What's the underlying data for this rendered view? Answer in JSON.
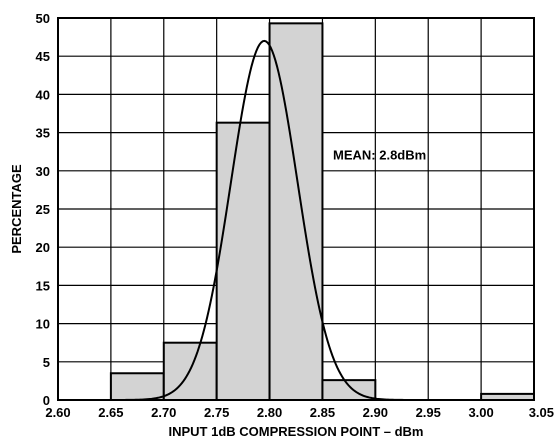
{
  "chart_data": {
    "type": "bar",
    "title": "",
    "xlabel": "INPUT 1dB COMPRESSION POINT – dBm",
    "ylabel": "PERCENTAGE",
    "xlim": [
      2.6,
      3.05
    ],
    "ylim": [
      0,
      50
    ],
    "x_ticks": [
      "2.60",
      "2.65",
      "2.70",
      "2.75",
      "2.80",
      "2.85",
      "2.90",
      "2.95",
      "3.00",
      "3.05"
    ],
    "y_ticks": [
      "0",
      "5",
      "10",
      "15",
      "20",
      "25",
      "30",
      "35",
      "40",
      "45",
      "50"
    ],
    "grid": true,
    "bins": [
      {
        "x0": 2.65,
        "x1": 2.7,
        "value": 3.5
      },
      {
        "x0": 2.7,
        "x1": 2.75,
        "value": 7.5
      },
      {
        "x0": 2.75,
        "x1": 2.8,
        "value": 36.3
      },
      {
        "x0": 2.8,
        "x1": 2.85,
        "value": 49.3
      },
      {
        "x0": 2.85,
        "x1": 2.9,
        "value": 2.6
      },
      {
        "x0": 3.0,
        "x1": 3.05,
        "value": 0.8
      }
    ],
    "fit_curve": {
      "type": "normal",
      "mean": 2.795,
      "sigma": 0.0315,
      "peak": 47
    },
    "annotation": "MEAN: 2.8dBm",
    "colors": {
      "bar_fill": "#d3d3d3",
      "stroke": "#000000",
      "background": "#ffffff"
    }
  }
}
